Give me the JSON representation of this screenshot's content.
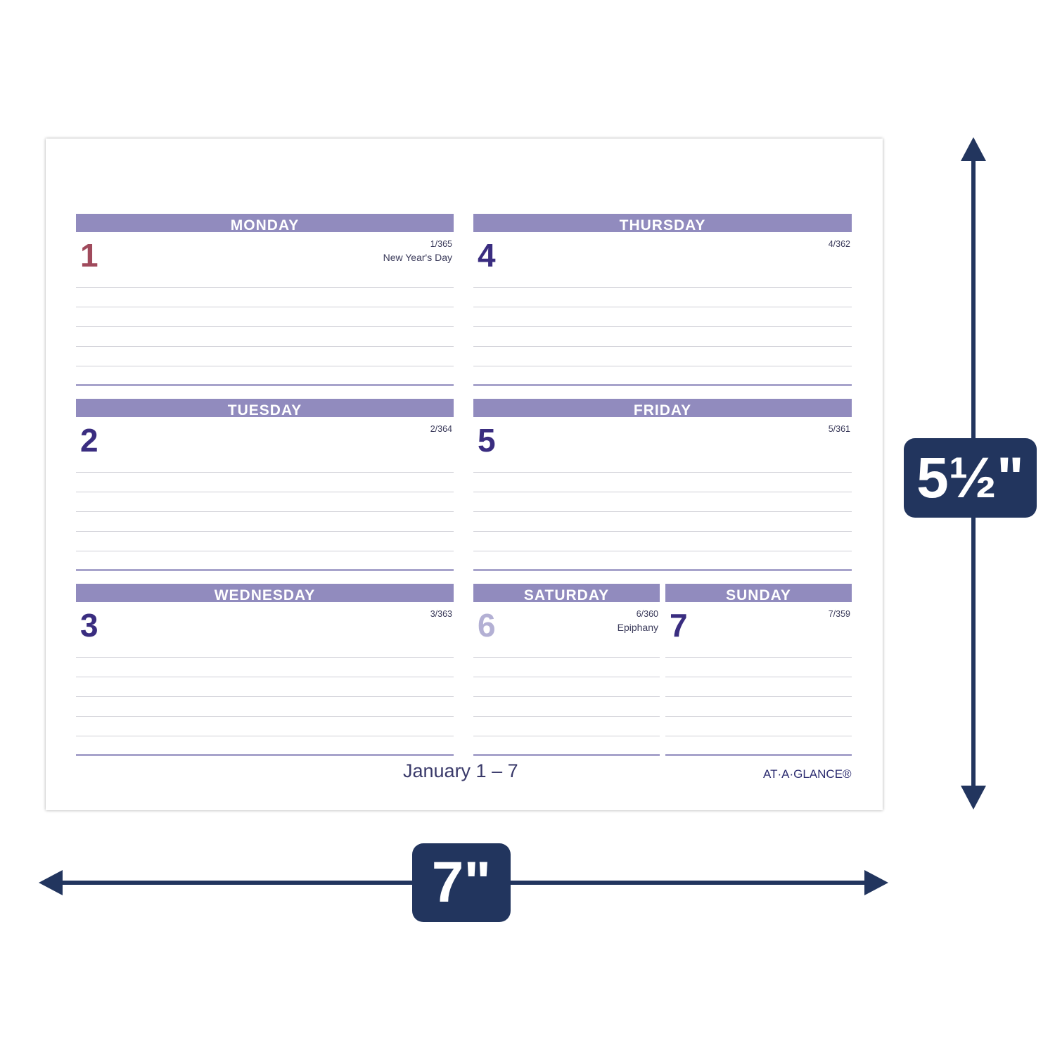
{
  "days": [
    {
      "name": "MONDAY",
      "num": "1",
      "count": "1/365",
      "holiday": "New Year's Day",
      "num_color": "#a04a5c"
    },
    {
      "name": "TUESDAY",
      "num": "2",
      "count": "2/364",
      "holiday": "",
      "num_color": "#3a2d80"
    },
    {
      "name": "WEDNESDAY",
      "num": "3",
      "count": "3/363",
      "holiday": "",
      "num_color": "#3a2d80"
    },
    {
      "name": "THURSDAY",
      "num": "4",
      "count": "4/362",
      "holiday": "",
      "num_color": "#3a2d80"
    },
    {
      "name": "FRIDAY",
      "num": "5",
      "count": "5/361",
      "holiday": "",
      "num_color": "#3a2d80"
    },
    {
      "name": "SATURDAY",
      "num": "6",
      "count": "6/360",
      "holiday": "Epiphany",
      "num_color": "#b3b0d4"
    },
    {
      "name": "SUNDAY",
      "num": "7",
      "count": "7/359",
      "holiday": "",
      "num_color": "#3a2d80"
    }
  ],
  "footer": {
    "week": "January 1 – 7",
    "brand": "AT·A·GLANCE®"
  },
  "dimensions": {
    "width": "7\"",
    "height": "5½\""
  },
  "colors": {
    "header": "#918bbe",
    "dimension": "#22355e"
  }
}
